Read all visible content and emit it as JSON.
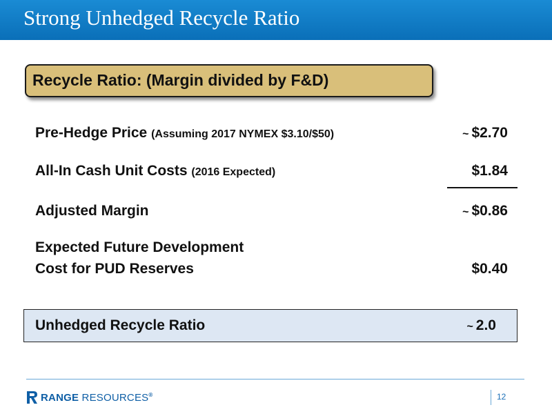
{
  "slide": {
    "title": "Strong Unhedged Recycle Ratio",
    "subtitle": "Recycle Ratio: (Margin divided by F&D)"
  },
  "rows": [
    {
      "label": "Pre-Hedge Price",
      "note": "(Assuming 2017 NYMEX $3.10/$50)",
      "approx": "~",
      "value": "$2.70"
    },
    {
      "label": "All-In Cash Unit Costs",
      "note": "(2016 Expected)",
      "approx": "",
      "value": "$1.84"
    },
    {
      "label": "Adjusted Margin",
      "note": "",
      "approx": "~",
      "value": "$0.86"
    },
    {
      "label_line1": "Expected Future Development",
      "label_line2": "Cost for PUD Reserves",
      "value": "$0.40"
    }
  ],
  "result": {
    "label": "Unhedged Recycle Ratio",
    "approx": "~",
    "value": "2.0"
  },
  "footer": {
    "company_bold": "RANGE",
    "company_light": "RESOURCES",
    "registered_mark": "®",
    "page_number": "12"
  },
  "colors": {
    "title_bar": "#0a6fb8",
    "subtitle_box": "#d9bf7a",
    "result_box": "#dde7f3",
    "brand_blue": "#0f5fa6"
  },
  "icons": {
    "logo": "range-resources-r-logo-icon"
  }
}
